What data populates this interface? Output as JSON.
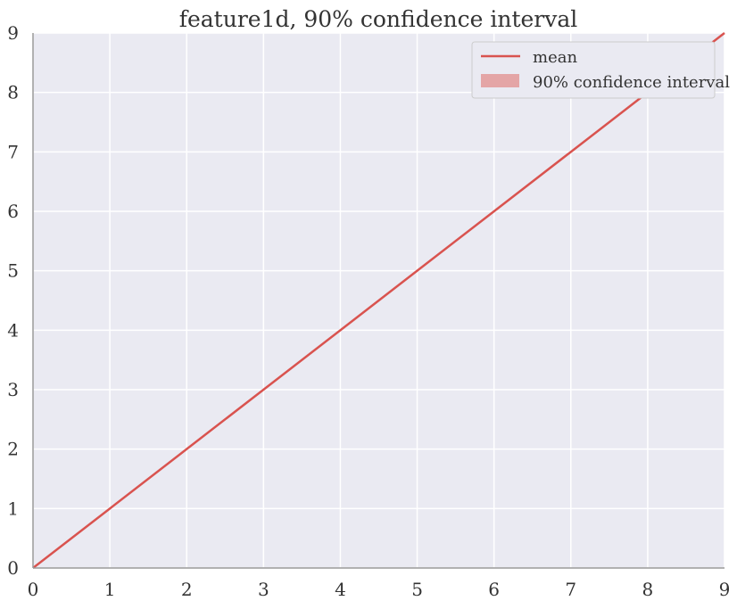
{
  "chart_data": {
    "type": "line",
    "title": "feature1d, 90% confidence interval",
    "xlabel": "",
    "ylabel": "",
    "xlim": [
      0,
      9
    ],
    "ylim": [
      0,
      9
    ],
    "xticks": [
      "0",
      "1",
      "2",
      "3",
      "4",
      "5",
      "6",
      "7",
      "8",
      "9"
    ],
    "yticks": [
      "0",
      "1",
      "2",
      "3",
      "4",
      "5",
      "6",
      "7",
      "8",
      "9"
    ],
    "grid": true,
    "legend": {
      "placement": "top-right",
      "entries": [
        "mean",
        "90% confidence interval"
      ]
    },
    "series": [
      {
        "name": "mean",
        "kind": "line",
        "color": "#d9534f",
        "x": [
          0,
          1,
          2,
          3,
          4,
          5,
          6,
          7,
          8,
          9
        ],
        "y": [
          0,
          1,
          2,
          3,
          4,
          5,
          6,
          7,
          8,
          9
        ]
      },
      {
        "name": "90% confidence interval",
        "kind": "band",
        "color": "#e4a5a6",
        "x": [
          0,
          1,
          2,
          3,
          4,
          5,
          6,
          7,
          8,
          9
        ],
        "lower": [
          0,
          1,
          2,
          3,
          4,
          5,
          6,
          7,
          8,
          9
        ],
        "upper": [
          0,
          1,
          2,
          3,
          4,
          5,
          6,
          7,
          8,
          9
        ]
      }
    ],
    "colors": {
      "plot_background": "#eaeaf2",
      "grid": "#ffffff",
      "axis": "#999999",
      "line": "#d9534f",
      "band": "#e4a5a6"
    }
  }
}
